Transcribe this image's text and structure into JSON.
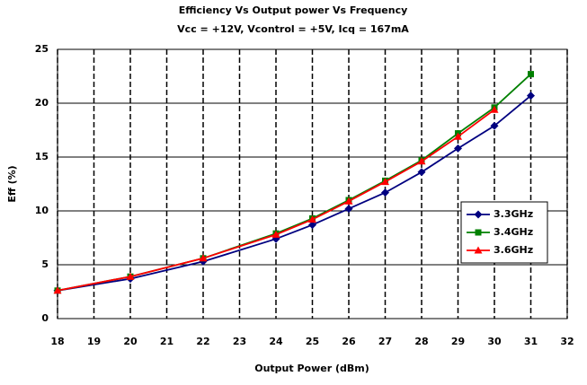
{
  "chart_data": {
    "type": "line",
    "title": "Efficiency Vs Output power Vs Frequency",
    "subtitle": "Vcc = +12V, Vcontrol = +5V, Icq = 167mA",
    "xlabel": "Output Power (dBm)",
    "ylabel": "Eff (%)",
    "x": [
      18,
      20,
      22,
      24,
      25,
      26,
      27,
      28,
      29,
      30,
      31
    ],
    "series": [
      {
        "name": "3.3GHz",
        "color": "#000080",
        "marker": "diamond",
        "values": [
          2.6,
          3.7,
          5.3,
          7.4,
          8.7,
          10.2,
          11.7,
          13.6,
          15.8,
          17.9,
          20.7
        ]
      },
      {
        "name": "3.4GHz",
        "color": "#008000",
        "marker": "square",
        "values": [
          2.6,
          3.9,
          5.6,
          7.9,
          9.3,
          11.0,
          12.8,
          14.7,
          17.2,
          19.6,
          22.7
        ]
      },
      {
        "name": "3.6GHz",
        "color": "#ff0000",
        "marker": "triangle",
        "values": [
          2.6,
          3.9,
          5.6,
          7.8,
          9.2,
          10.9,
          12.7,
          14.6,
          16.9,
          19.4,
          null
        ]
      }
    ],
    "xlim": [
      18,
      32
    ],
    "xticks": [
      18,
      19,
      20,
      21,
      22,
      23,
      24,
      25,
      26,
      27,
      28,
      29,
      30,
      31,
      32
    ],
    "ylim": [
      0,
      25
    ],
    "yticks": [
      0,
      5,
      10,
      15,
      20,
      25
    ],
    "grid": true,
    "legend": "right"
  }
}
